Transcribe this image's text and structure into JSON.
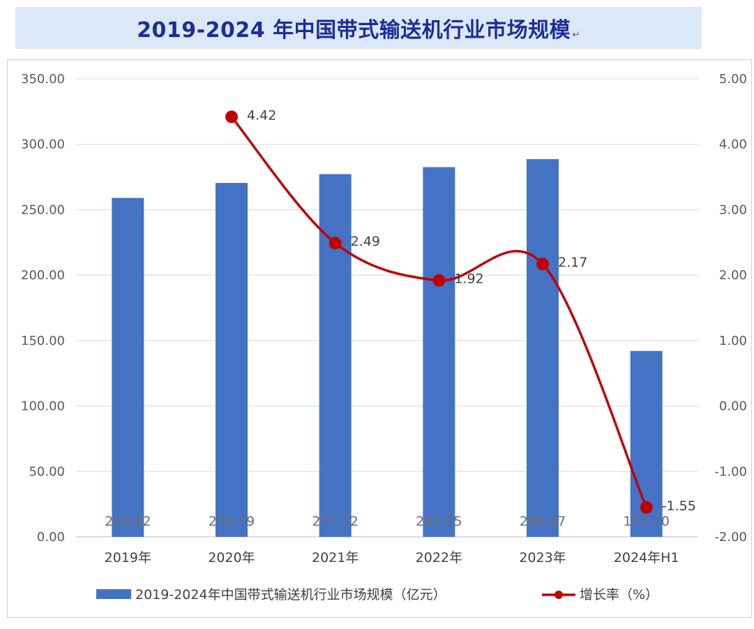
{
  "title": "2019-2024 年中国带式输送机行业市场规模",
  "title_mark": "↵",
  "chart_data": {
    "type": "bar",
    "categories": [
      "2019年",
      "2020年",
      "2021年",
      "2022年",
      "2023年",
      "2024年H1"
    ],
    "series": [
      {
        "name": "2019-2024年中国带式输送机行业市场规模（亿元）",
        "type": "bar",
        "axis": "left",
        "color": "#4472c4",
        "values": [
          259.02,
          270.49,
          277.22,
          282.55,
          288.67,
          142.1
        ],
        "value_labels": [
          "259.02",
          "270.49",
          "277.22",
          "282.55",
          "288.67",
          "142.10"
        ]
      },
      {
        "name": "增长率（%）",
        "type": "line",
        "axis": "right",
        "color": "#c00000",
        "values": [
          null,
          4.42,
          2.49,
          1.92,
          2.17,
          -1.55
        ],
        "value_labels": [
          "",
          "4.42",
          "2.49",
          "1.92",
          "2.17",
          "-1.55"
        ]
      }
    ],
    "y_left": {
      "min": 0,
      "max": 350,
      "ticks": [
        0,
        50,
        100,
        150,
        200,
        250,
        300,
        350
      ],
      "tick_labels": [
        "0.00",
        "50.00",
        "100.00",
        "150.00",
        "200.00",
        "250.00",
        "300.00",
        "350.00"
      ]
    },
    "y_right": {
      "min": -2,
      "max": 5,
      "ticks": [
        -2,
        -1,
        0,
        1,
        2,
        3,
        4,
        5
      ],
      "tick_labels": [
        "-2.00",
        "-1.00",
        "0.00",
        "1.00",
        "2.00",
        "3.00",
        "4.00",
        "5.00"
      ]
    },
    "grid": true,
    "legend_position": "bottom"
  }
}
